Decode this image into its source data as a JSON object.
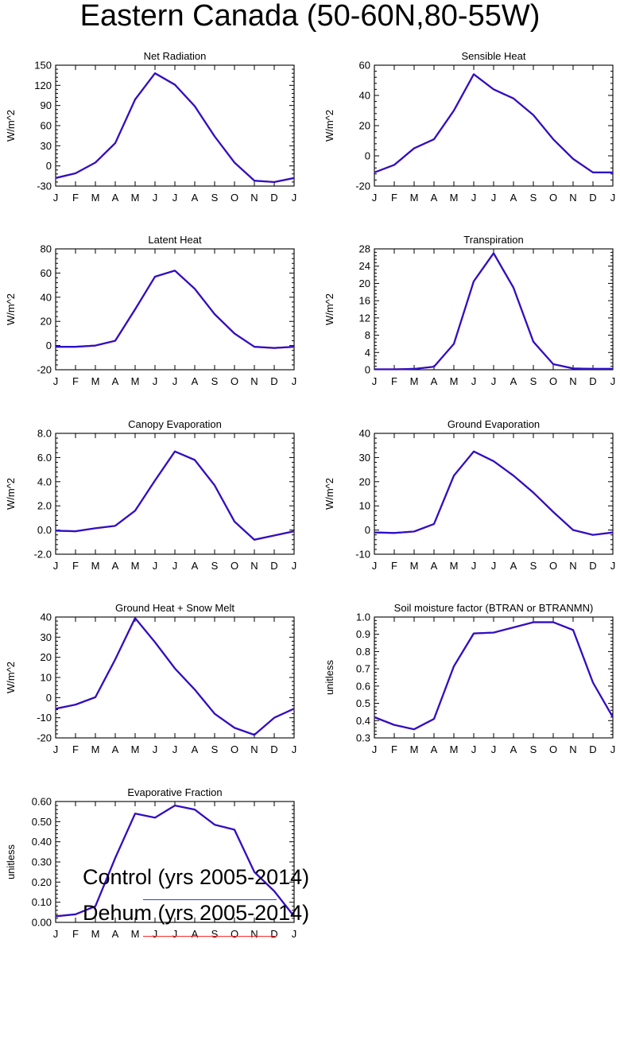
{
  "figure_title": "Eastern Canada (50-60N,80-55W)",
  "month_ticks": [
    "J",
    "F",
    "M",
    "A",
    "M",
    "J",
    "J",
    "A",
    "S",
    "O",
    "N",
    "D",
    "J"
  ],
  "legend": [
    {
      "label": "Control (yrs 2005-2014)",
      "color": "#3333ff"
    },
    {
      "label": "Dehum (yrs 2005-2014)",
      "color": "#ff2a2a"
    }
  ],
  "line_colors": {
    "control": "#3333ff",
    "dehum": "#ff2a2a",
    "overlap": "#2a10cc"
  },
  "chart_data": [
    {
      "type": "line",
      "title": "Net Radiation",
      "ylabel": "W/m^2",
      "ylim": [
        -30,
        150
      ],
      "yticks": [
        "-30",
        "0",
        "30",
        "60",
        "90",
        "120",
        "150"
      ],
      "series": [
        {
          "name": "Control (yrs 2005-2014)",
          "values": [
            -18,
            -11,
            5,
            34,
            99,
            138,
            121,
            89,
            44,
            5,
            -22,
            -24,
            -18
          ]
        },
        {
          "name": "Dehum (yrs 2005-2014)",
          "values": [
            -18,
            -11,
            5,
            34,
            99,
            138,
            121,
            89,
            44,
            5,
            -22,
            -24,
            -18
          ]
        }
      ]
    },
    {
      "type": "line",
      "title": "Sensible Heat",
      "ylabel": "W/m^2",
      "ylim": [
        -20,
        60
      ],
      "yticks": [
        "-20",
        "0",
        "20",
        "40",
        "60"
      ],
      "series": [
        {
          "name": "Control (yrs 2005-2014)",
          "values": [
            -11,
            -6,
            5,
            11,
            30,
            54,
            44,
            38,
            27,
            11,
            -2,
            -11,
            -11
          ]
        },
        {
          "name": "Dehum (yrs 2005-2014)",
          "values": [
            -11,
            -6,
            5,
            11,
            30,
            54,
            44,
            38,
            27,
            11,
            -2,
            -11,
            -11
          ]
        }
      ]
    },
    {
      "type": "line",
      "title": "Latent Heat",
      "ylabel": "W/m^2",
      "ylim": [
        -20,
        80
      ],
      "yticks": [
        "-20",
        "0",
        "20",
        "40",
        "60",
        "80"
      ],
      "series": [
        {
          "name": "Control (yrs 2005-2014)",
          "values": [
            -1,
            -1,
            0,
            4,
            30,
            57,
            62,
            47,
            26,
            10,
            -1,
            -2,
            -1
          ]
        },
        {
          "name": "Dehum (yrs 2005-2014)",
          "values": [
            -1,
            -1,
            0,
            4,
            30,
            57,
            62,
            47,
            26,
            10,
            -1,
            -2,
            -1
          ]
        }
      ]
    },
    {
      "type": "line",
      "title": "Transpiration",
      "ylabel": "W/m^2",
      "ylim": [
        0,
        28
      ],
      "yticks": [
        "0",
        "4",
        "8",
        "12",
        "16",
        "20",
        "24",
        "28"
      ],
      "series": [
        {
          "name": "Control (yrs 2005-2014)",
          "values": [
            0.1,
            0.1,
            0.2,
            0.7,
            6,
            20.5,
            27,
            19,
            6.5,
            1.3,
            0.3,
            0.2,
            0.2
          ]
        },
        {
          "name": "Dehum (yrs 2005-2014)",
          "values": [
            0.1,
            0.1,
            0.2,
            0.7,
            6,
            20.5,
            27,
            19,
            6.5,
            1.3,
            0.3,
            0.2,
            0.2
          ]
        }
      ]
    },
    {
      "type": "line",
      "title": "Canopy Evaporation",
      "ylabel": "W/m^2",
      "ylim": [
        -2,
        8
      ],
      "yticks": [
        "-2.0",
        "0.0",
        "2.0",
        "4.0",
        "6.0",
        "8.0"
      ],
      "series": [
        {
          "name": "Control (yrs 2005-2014)",
          "values": [
            -0.05,
            -0.1,
            0.15,
            0.35,
            1.6,
            4.1,
            6.5,
            5.8,
            3.7,
            0.7,
            -0.8,
            -0.45,
            -0.1
          ]
        },
        {
          "name": "Dehum (yrs 2005-2014)",
          "values": [
            -0.05,
            -0.1,
            0.15,
            0.35,
            1.6,
            4.1,
            6.5,
            5.8,
            3.7,
            0.7,
            -0.8,
            -0.45,
            -0.1
          ]
        }
      ]
    },
    {
      "type": "line",
      "title": "Ground Evaporation",
      "ylabel": "W/m^2",
      "ylim": [
        -10,
        40
      ],
      "yticks": [
        "-10",
        "0",
        "10",
        "20",
        "30",
        "40"
      ],
      "series": [
        {
          "name": "Control (yrs 2005-2014)",
          "values": [
            -1,
            -1.2,
            -0.6,
            2.5,
            22.5,
            32.5,
            28.5,
            22.5,
            15.5,
            7.5,
            0,
            -2,
            -1
          ]
        },
        {
          "name": "Dehum (yrs 2005-2014)",
          "values": [
            -1,
            -1.2,
            -0.6,
            2.5,
            22.5,
            32.5,
            28.5,
            22.5,
            15.5,
            7.5,
            0,
            -2,
            -1
          ]
        }
      ]
    },
    {
      "type": "line",
      "title": "Ground Heat + Snow Melt",
      "ylabel": "W/m^2",
      "ylim": [
        -20,
        40
      ],
      "yticks": [
        "-20",
        "-10",
        "0",
        "10",
        "20",
        "30",
        "40"
      ],
      "series": [
        {
          "name": "Control (yrs 2005-2014)",
          "values": [
            -5.5,
            -3.5,
            0.2,
            19,
            39.5,
            27.5,
            14.5,
            4,
            -8,
            -15,
            -18.5,
            -10,
            -5.5
          ]
        },
        {
          "name": "Dehum (yrs 2005-2014)",
          "values": [
            -5.5,
            -3.5,
            0.2,
            19,
            39.5,
            27.5,
            14.5,
            4,
            -8,
            -15,
            -18.5,
            -10,
            -5.5
          ]
        }
      ]
    },
    {
      "type": "line",
      "title": "Soil moisture factor (BTRAN or BTRANMN)",
      "ylabel": "unitless",
      "ylim": [
        0.3,
        1.0
      ],
      "yticks": [
        "0.3",
        "0.4",
        "0.5",
        "0.6",
        "0.7",
        "0.8",
        "0.9",
        "1.0"
      ],
      "series": [
        {
          "name": "Control (yrs 2005-2014)",
          "values": [
            0.42,
            0.375,
            0.35,
            0.41,
            0.715,
            0.905,
            0.91,
            0.94,
            0.97,
            0.97,
            0.925,
            0.62,
            0.42
          ]
        },
        {
          "name": "Dehum (yrs 2005-2014)",
          "values": [
            0.42,
            0.375,
            0.35,
            0.41,
            0.715,
            0.905,
            0.91,
            0.94,
            0.97,
            0.97,
            0.925,
            0.62,
            0.42
          ]
        }
      ]
    },
    {
      "type": "line",
      "title": "Evaporative Fraction",
      "ylabel": "unitless",
      "ylim": [
        0,
        0.6
      ],
      "yticks": [
        "0.00",
        "0.10",
        "0.20",
        "0.30",
        "0.40",
        "0.50",
        "0.60"
      ],
      "series": [
        {
          "name": "Control (yrs 2005-2014)",
          "values": [
            0.03,
            0.04,
            0.08,
            0.32,
            0.54,
            0.52,
            0.58,
            0.56,
            0.485,
            0.46,
            0.25,
            0.155,
            0.03
          ]
        },
        {
          "name": "Dehum (yrs 2005-2014)",
          "values": [
            0.03,
            0.04,
            0.08,
            0.32,
            0.54,
            0.52,
            0.58,
            0.56,
            0.485,
            0.46,
            0.25,
            0.155,
            0.03
          ]
        }
      ]
    }
  ]
}
